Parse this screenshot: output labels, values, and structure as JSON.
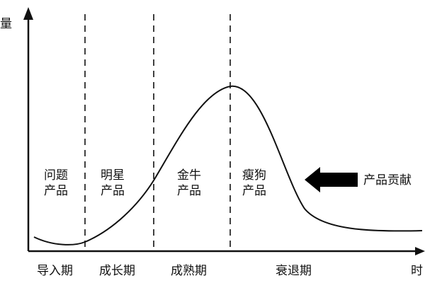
{
  "axes": {
    "y_label": "量",
    "x_label": "时"
  },
  "quadrant_labels": [
    {
      "line1": "问题",
      "line2": "产品"
    },
    {
      "line1": "明星",
      "line2": "产品"
    },
    {
      "line1": "金牛",
      "line2": "产品"
    },
    {
      "line1": "瘦狗",
      "line2": "产品"
    }
  ],
  "stages": [
    "导入期",
    "成长期",
    "成熟期",
    "衰退期"
  ],
  "annotation": {
    "label": "产品贡献",
    "icon": "left-arrow-icon"
  },
  "colors": {
    "line": "#111111",
    "background": "#ffffff"
  }
}
